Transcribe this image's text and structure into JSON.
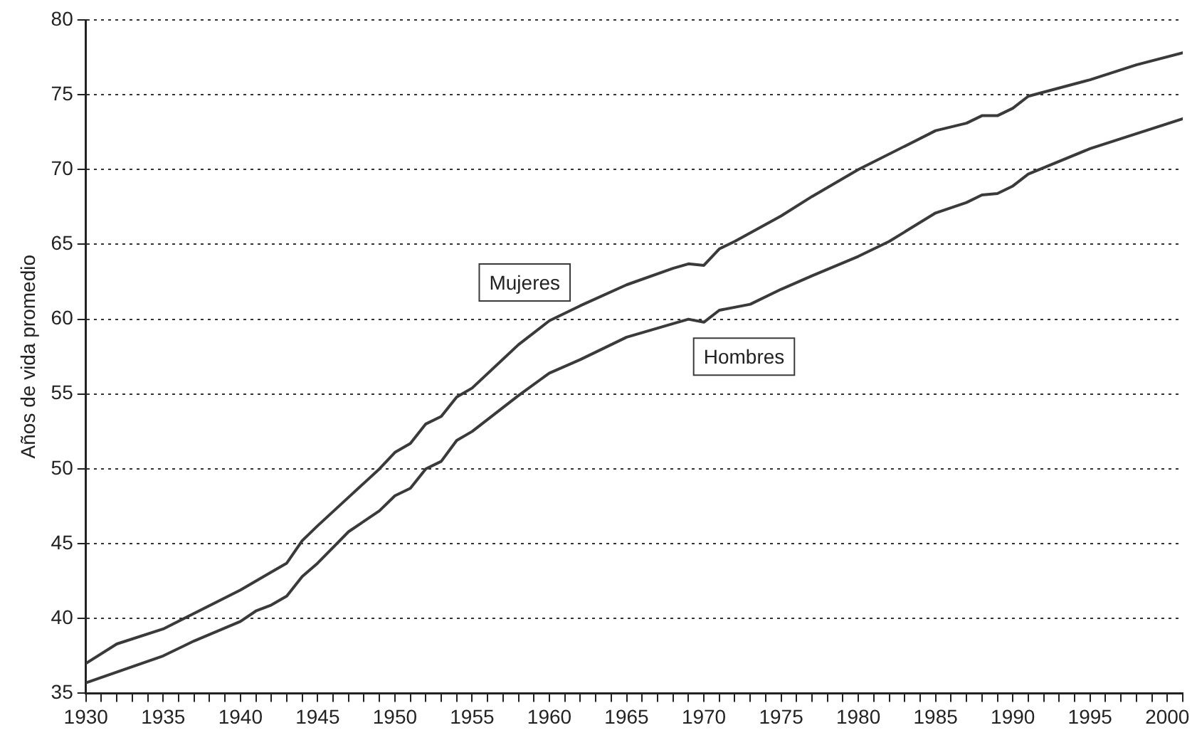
{
  "chart_data": {
    "type": "line",
    "ylabel": "Años de vida promedio",
    "xlim": [
      1930,
      2001
    ],
    "xticks": [
      1930,
      {
        "value": 1931,
        "label": null
      },
      {
        "value": 1932,
        "label": null
      },
      {
        "value": 1933,
        "label": null
      },
      {
        "value": 1934,
        "label": null
      },
      1935,
      {
        "value": 1936,
        "label": null
      },
      {
        "value": 1937,
        "label": null
      },
      {
        "value": 1938,
        "label": null
      },
      {
        "value": 1939,
        "label": null
      },
      1940,
      {
        "value": 1941,
        "label": null
      },
      {
        "value": 1942,
        "label": null
      },
      {
        "value": 1943,
        "label": null
      },
      {
        "value": 1944,
        "label": null
      },
      1945,
      {
        "value": 1946,
        "label": null
      },
      {
        "value": 1947,
        "label": null
      },
      {
        "value": 1948,
        "label": null
      },
      {
        "value": 1949,
        "label": null
      },
      1950,
      {
        "value": 1951,
        "label": null
      },
      {
        "value": 1952,
        "label": null
      },
      {
        "value": 1953,
        "label": null
      },
      {
        "value": 1954,
        "label": null
      },
      1955,
      {
        "value": 1956,
        "label": null
      },
      {
        "value": 1957,
        "label": null
      },
      {
        "value": 1958,
        "label": null
      },
      {
        "value": 1959,
        "label": null
      },
      1960,
      {
        "value": 1961,
        "label": null
      },
      {
        "value": 1962,
        "label": null
      },
      {
        "value": 1963,
        "label": null
      },
      {
        "value": 1964,
        "label": null
      },
      1965,
      {
        "value": 1966,
        "label": null
      },
      {
        "value": 1967,
        "label": null
      },
      {
        "value": 1968,
        "label": null
      },
      {
        "value": 1969,
        "label": null
      },
      1970,
      {
        "value": 1971,
        "label": null
      },
      {
        "value": 1972,
        "label": null
      },
      {
        "value": 1973,
        "label": null
      },
      {
        "value": 1974,
        "label": null
      },
      1975,
      {
        "value": 1976,
        "label": null
      },
      {
        "value": 1977,
        "label": null
      },
      {
        "value": 1978,
        "label": null
      },
      {
        "value": 1979,
        "label": null
      },
      1980,
      {
        "value": 1981,
        "label": null
      },
      {
        "value": 1982,
        "label": null
      },
      {
        "value": 1983,
        "label": null
      },
      {
        "value": 1984,
        "label": null
      },
      1985,
      {
        "value": 1986,
        "label": null
      },
      {
        "value": 1987,
        "label": null
      },
      {
        "value": 1988,
        "label": null
      },
      {
        "value": 1989,
        "label": null
      },
      1990,
      {
        "value": 1991,
        "label": null
      },
      {
        "value": 1992,
        "label": null
      },
      {
        "value": 1993,
        "label": null
      },
      {
        "value": 1994,
        "label": null
      },
      1995,
      {
        "value": 1996,
        "label": null
      },
      {
        "value": 1997,
        "label": null
      },
      {
        "value": 1998,
        "label": null
      },
      {
        "value": 1999,
        "label": null
      },
      2000,
      {
        "value": 2001,
        "label": null
      }
    ],
    "ylim": [
      35,
      80
    ],
    "yticks": [
      35,
      40,
      45,
      50,
      55,
      60,
      65,
      70,
      75,
      80
    ],
    "grid": "y",
    "legend": false,
    "marker": "none",
    "line_style": "solid",
    "series": [
      {
        "name": "Mujeres",
        "color": "#3a3a3a",
        "x": [
          1930,
          1932,
          1935,
          1940,
          1942,
          1943,
          1944,
          1945,
          1947,
          1949,
          1950,
          1951,
          1952,
          1953,
          1954,
          1955,
          1958,
          1960,
          1962,
          1965,
          1968,
          1969,
          1970,
          1971,
          1972,
          1975,
          1977,
          1980,
          1985,
          1987,
          1988,
          1989,
          1990,
          1991,
          1995,
          1998,
          2001
        ],
        "values": [
          37.0,
          38.3,
          39.3,
          41.9,
          43.1,
          43.7,
          45.2,
          46.2,
          48.1,
          50.0,
          51.1,
          51.7,
          53.0,
          53.5,
          54.8,
          55.4,
          58.3,
          59.9,
          60.9,
          62.3,
          63.4,
          63.7,
          63.6,
          64.7,
          65.2,
          66.9,
          68.2,
          70.0,
          72.6,
          73.1,
          73.6,
          73.6,
          74.1,
          74.9,
          76.0,
          77.0,
          77.8
        ]
      },
      {
        "name": "Hombres",
        "color": "#3a3a3a",
        "x": [
          1930,
          1935,
          1937,
          1940,
          1941,
          1942,
          1943,
          1944,
          1945,
          1947,
          1949,
          1950,
          1951,
          1952,
          1953,
          1954,
          1955,
          1958,
          1960,
          1962,
          1965,
          1968,
          1969,
          1970,
          1971,
          1973,
          1975,
          1977,
          1980,
          1982,
          1985,
          1987,
          1988,
          1989,
          1990,
          1991,
          1995,
          1998,
          2001
        ],
        "values": [
          35.7,
          37.5,
          38.5,
          39.8,
          40.5,
          40.9,
          41.5,
          42.8,
          43.7,
          45.8,
          47.2,
          48.2,
          48.7,
          50.0,
          50.5,
          51.9,
          52.5,
          54.9,
          56.4,
          57.3,
          58.8,
          59.7,
          60.0,
          59.8,
          60.6,
          61.0,
          62.0,
          62.9,
          64.2,
          65.2,
          67.1,
          67.8,
          68.3,
          68.4,
          68.9,
          69.7,
          71.4,
          72.4,
          73.4
        ]
      }
    ]
  }
}
